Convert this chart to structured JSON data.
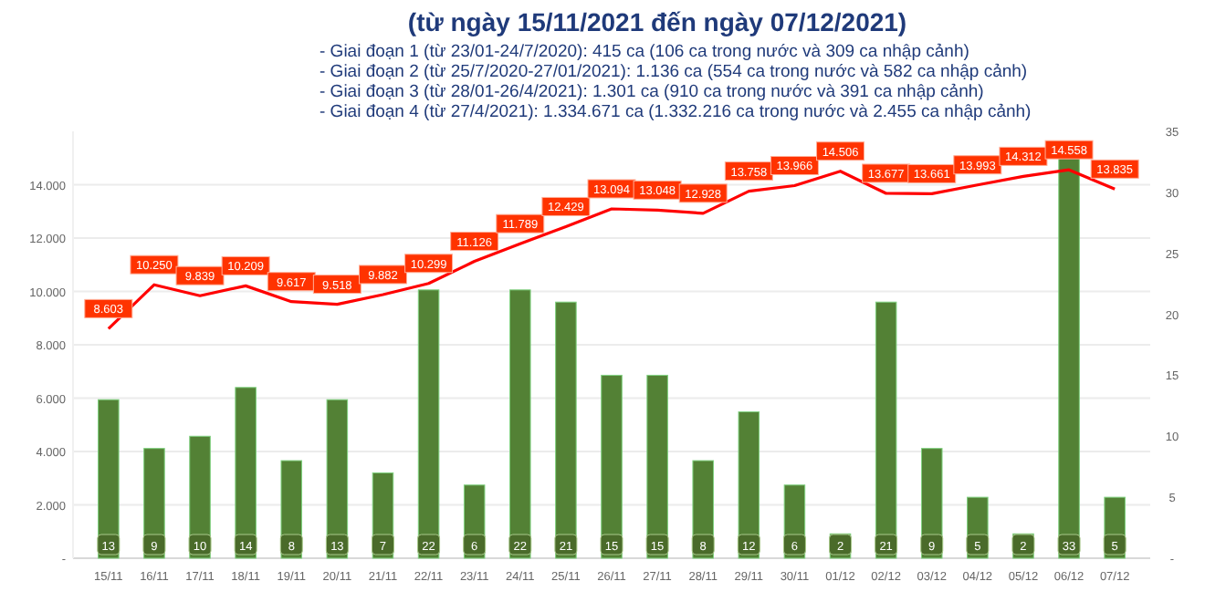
{
  "chart_data": {
    "type": "bar",
    "title": "(từ ngày 15/11/2021 đến ngày 07/12/2021)",
    "annotations": [
      "- Giai đoạn 1 (từ 23/01-24/7/2020): 415 ca (106 ca trong nước và 309 ca nhập cảnh)",
      "- Giai đoạn 2 (từ 25/7/2020-27/01/2021): 1.136 ca (554 ca trong nước và 582 ca nhập cảnh)",
      "- Giai đoạn 3 (từ 28/01-26/4/2021): 1.301 ca (910 ca trong nước và 391 ca nhập cảnh)",
      "- Giai đoạn 4 (từ 27/4/2021): 1.334.671 ca (1.332.216 ca trong nước và 2.455 ca nhập cảnh)"
    ],
    "categories": [
      "15/11",
      "16/11",
      "17/11",
      "18/11",
      "19/11",
      "20/11",
      "21/11",
      "22/11",
      "23/11",
      "24/11",
      "25/11",
      "26/11",
      "27/11",
      "28/11",
      "29/11",
      "30/11",
      "01/12",
      "02/12",
      "03/12",
      "04/12",
      "05/12",
      "06/12",
      "07/12"
    ],
    "series": [
      {
        "axis": "y2",
        "color": "#538135",
        "values": [
          13,
          9,
          10,
          14,
          8,
          13,
          7,
          22,
          6,
          22,
          21,
          15,
          15,
          8,
          12,
          6,
          2,
          21,
          9,
          5,
          2,
          33,
          5
        ],
        "value_labels": [
          "13",
          "9",
          "10",
          "14",
          "8",
          "13",
          "7",
          "22",
          "6",
          "22",
          "21",
          "15",
          "15",
          "8",
          "12",
          "6",
          "2",
          "21",
          "9",
          "5",
          "2",
          "33",
          "5"
        ]
      },
      {
        "type": "line",
        "axis": "y",
        "color": "#ff0000",
        "values": [
          8603,
          10250,
          9839,
          10209,
          9617,
          9518,
          9882,
          10299,
          11126,
          11789,
          12429,
          13094,
          13048,
          12928,
          13758,
          13966,
          14506,
          13677,
          13661,
          13993,
          14312,
          14558,
          13835
        ],
        "value_labels": [
          "8.603",
          "10.250",
          "9.839",
          "10.209",
          "9.617",
          "9.518",
          "9.882",
          "10.299",
          "11.126",
          "11.789",
          "12.429",
          "13.094",
          "13.048",
          "12.928",
          "13.758",
          "13.966",
          "14.506",
          "13.677",
          "13.661",
          "13.993",
          "14.312",
          "14.558",
          "13.835"
        ]
      }
    ],
    "ylim": [
      0,
      16000
    ],
    "yticks": [
      {
        "value": 0,
        "label": "-"
      },
      {
        "value": 2000,
        "label": "2.000"
      },
      {
        "value": 4000,
        "label": "4.000"
      },
      {
        "value": 6000,
        "label": "6.000"
      },
      {
        "value": 8000,
        "label": "8.000"
      },
      {
        "value": 10000,
        "label": "10.000"
      },
      {
        "value": 12000,
        "label": "12.000"
      },
      {
        "value": 14000,
        "label": "14.000"
      }
    ],
    "y2lim": [
      0,
      35
    ],
    "y2ticks": [
      {
        "value": 0,
        "label": "-"
      },
      5,
      10,
      15,
      20,
      25,
      30,
      35
    ],
    "grid": "y",
    "marker": "none",
    "line_style": "solid"
  }
}
